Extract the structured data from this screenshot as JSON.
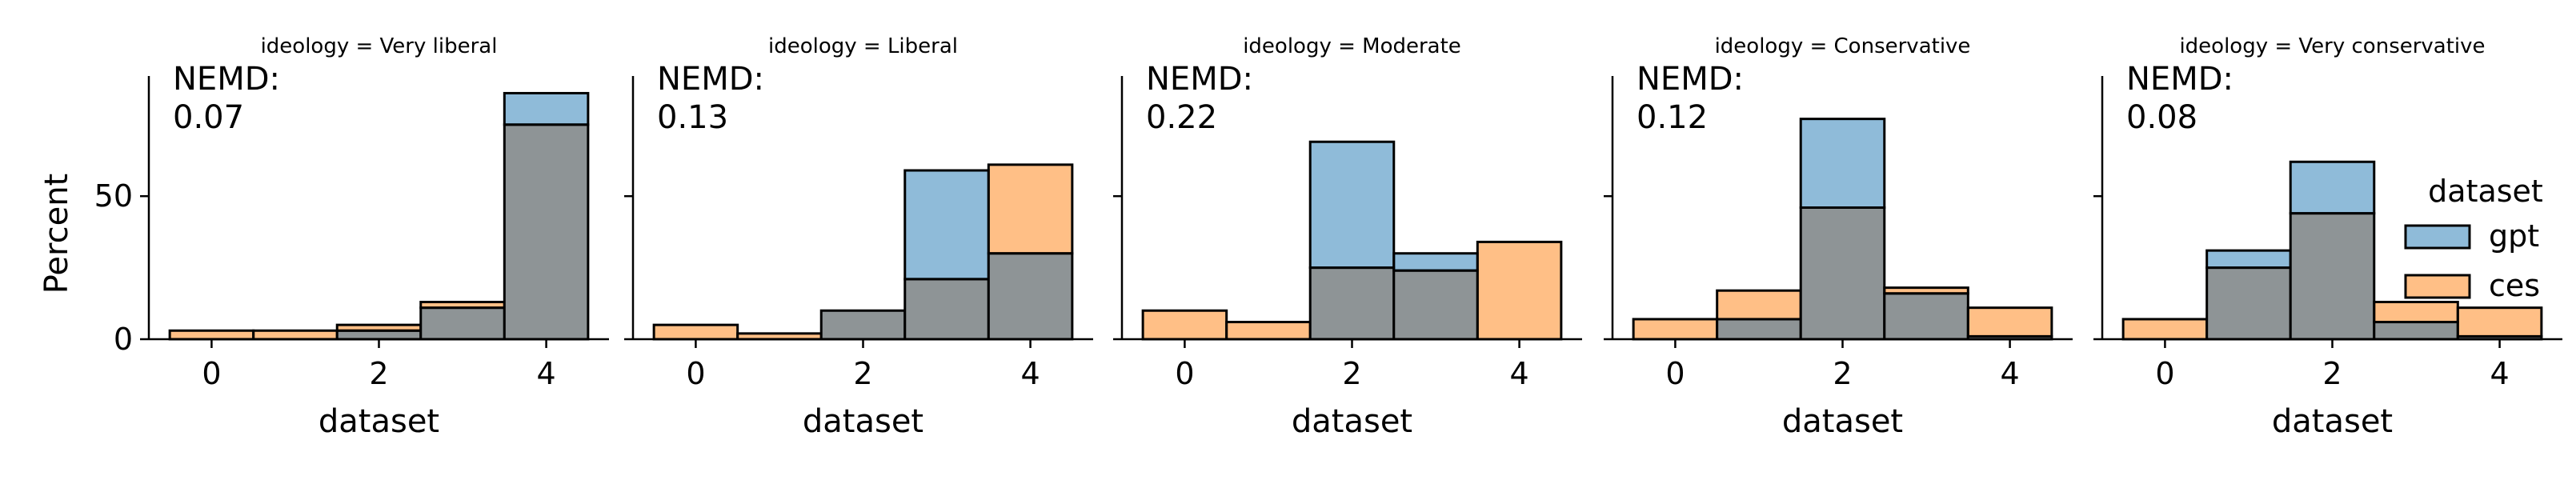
{
  "chart_data": {
    "type": "bar",
    "x_edges": [
      -0.5,
      0.5,
      1.5,
      2.5,
      3.5,
      4.5
    ],
    "xlim": [
      -0.75,
      4.75
    ],
    "ylim": [
      0,
      92
    ],
    "xticks": [
      0,
      2,
      4
    ],
    "yticks": [
      0,
      50
    ],
    "xlabel": "dataset",
    "ylabel": "Percent",
    "colors": {
      "gpt": "#1f77b4",
      "ces": "#ff7f0e",
      "overlap": "#8e9496"
    },
    "legend": {
      "title": "dataset",
      "position": "right",
      "entries": [
        {
          "name": "gpt",
          "color": "#1f77b4"
        },
        {
          "name": "ces",
          "color": "#ff7f0e"
        }
      ]
    },
    "panels": [
      {
        "title": "ideology = Very liberal",
        "annotation_label": "NEMD:",
        "annotation_value": "0.07",
        "series": [
          {
            "name": "gpt",
            "values": [
              0,
              0,
              3,
              11,
              86
            ]
          },
          {
            "name": "ces",
            "values": [
              3,
              3,
              5,
              13,
              75
            ]
          }
        ]
      },
      {
        "title": "ideology = Liberal",
        "annotation_label": "NEMD:",
        "annotation_value": "0.13",
        "series": [
          {
            "name": "gpt",
            "values": [
              0,
              0,
              10,
              59,
              30
            ]
          },
          {
            "name": "ces",
            "values": [
              5,
              2,
              10,
              21,
              61
            ]
          }
        ]
      },
      {
        "title": "ideology = Moderate",
        "annotation_label": "NEMD:",
        "annotation_value": "0.22",
        "series": [
          {
            "name": "gpt",
            "values": [
              0,
              0,
              69,
              30,
              0
            ]
          },
          {
            "name": "ces",
            "values": [
              10,
              6,
              25,
              24,
              34
            ]
          }
        ]
      },
      {
        "title": "ideology = Conservative",
        "annotation_label": "NEMD:",
        "annotation_value": "0.12",
        "series": [
          {
            "name": "gpt",
            "values": [
              0,
              7,
              77,
              16,
              1
            ]
          },
          {
            "name": "ces",
            "values": [
              7,
              17,
              46,
              18,
              11
            ]
          }
        ]
      },
      {
        "title": "ideology = Very conservative",
        "annotation_label": "NEMD:",
        "annotation_value": "0.08",
        "series": [
          {
            "name": "gpt",
            "values": [
              0,
              31,
              62,
              6,
              1
            ]
          },
          {
            "name": "ces",
            "values": [
              7,
              25,
              44,
              13,
              11
            ]
          }
        ]
      }
    ]
  }
}
